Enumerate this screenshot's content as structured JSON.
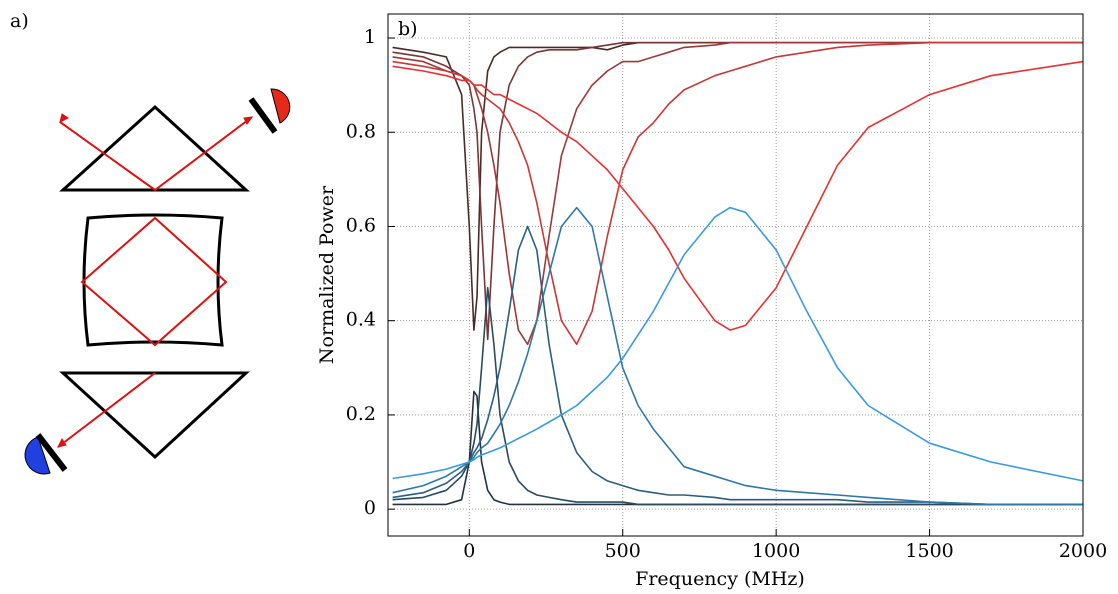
{
  "panel_label": "a)",
  "chart_data": {
    "type": "line",
    "panel_label": "b)",
    "x_label": "Frequency (MHz)",
    "y_label": "Normalized Power",
    "xlim": [
      -265,
      2000
    ],
    "ylim": [
      -0.057,
      1.051
    ],
    "xticks": [
      0,
      500,
      1000,
      1500,
      2000
    ],
    "yticks": [
      0,
      0.2,
      0.4,
      0.6,
      0.8,
      1
    ],
    "grid": true,
    "x": [
      -250,
      -150,
      -75,
      -25,
      0,
      15,
      25,
      40,
      60,
      80,
      100,
      130,
      160,
      190,
      220,
      260,
      300,
      350,
      400,
      450,
      500,
      550,
      600,
      650,
      700,
      800,
      850,
      900,
      1000,
      1100,
      1200,
      1300,
      1500,
      1700,
      2000
    ],
    "series": [
      {
        "color": "#4a2b2b",
        "values": [
          0.98,
          0.97,
          0.96,
          0.88,
          0.6,
          0.38,
          0.45,
          0.8,
          0.93,
          0.96,
          0.97,
          0.98,
          0.98,
          0.98,
          0.98,
          0.98,
          0.98,
          0.98,
          0.98,
          0.975,
          0.985,
          0.99,
          0.99,
          0.99,
          0.99,
          0.99,
          0.99,
          0.99,
          0.99,
          0.99,
          0.99,
          0.99,
          0.99,
          0.99,
          0.99
        ]
      },
      {
        "color": "#7a3535",
        "values": [
          0.97,
          0.96,
          0.94,
          0.92,
          0.9,
          0.85,
          0.8,
          0.6,
          0.36,
          0.6,
          0.8,
          0.9,
          0.94,
          0.96,
          0.97,
          0.975,
          0.975,
          0.975,
          0.98,
          0.985,
          0.99,
          0.99,
          0.99,
          0.99,
          0.99,
          0.99,
          0.99,
          0.99,
          0.99,
          0.99,
          0.99,
          0.99,
          0.99,
          0.99,
          0.99
        ]
      },
      {
        "color": "#a03838",
        "values": [
          0.96,
          0.95,
          0.93,
          0.92,
          0.91,
          0.9,
          0.88,
          0.85,
          0.8,
          0.73,
          0.65,
          0.5,
          0.38,
          0.35,
          0.4,
          0.58,
          0.75,
          0.85,
          0.9,
          0.93,
          0.95,
          0.95,
          0.96,
          0.97,
          0.98,
          0.985,
          0.99,
          0.99,
          0.99,
          0.99,
          0.99,
          0.99,
          0.99,
          0.99,
          0.99
        ]
      },
      {
        "color": "#c83838",
        "values": [
          0.95,
          0.94,
          0.93,
          0.92,
          0.91,
          0.9,
          0.89,
          0.88,
          0.87,
          0.86,
          0.85,
          0.82,
          0.78,
          0.73,
          0.65,
          0.52,
          0.4,
          0.35,
          0.42,
          0.58,
          0.72,
          0.79,
          0.82,
          0.86,
          0.89,
          0.92,
          0.93,
          0.94,
          0.96,
          0.97,
          0.98,
          0.985,
          0.99,
          0.99,
          0.99
        ]
      },
      {
        "color": "#e83030",
        "values": [
          0.94,
          0.93,
          0.92,
          0.91,
          0.91,
          0.9,
          0.9,
          0.9,
          0.89,
          0.88,
          0.88,
          0.87,
          0.86,
          0.85,
          0.84,
          0.82,
          0.8,
          0.78,
          0.75,
          0.72,
          0.68,
          0.64,
          0.6,
          0.55,
          0.49,
          0.4,
          0.38,
          0.39,
          0.47,
          0.6,
          0.73,
          0.81,
          0.88,
          0.92,
          0.95
        ]
      },
      {
        "color": "#223340",
        "values": [
          0.01,
          0.01,
          0.01,
          0.02,
          0.1,
          0.25,
          0.24,
          0.1,
          0.04,
          0.02,
          0.015,
          0.01,
          0.01,
          0.01,
          0.01,
          0.01,
          0.01,
          0.01,
          0.01,
          0.01,
          0.01,
          0.01,
          0.01,
          0.01,
          0.01,
          0.01,
          0.01,
          0.01,
          0.01,
          0.01,
          0.01,
          0.01,
          0.01,
          0.01,
          0.01
        ]
      },
      {
        "color": "#2a4a60",
        "values": [
          0.02,
          0.025,
          0.04,
          0.07,
          0.1,
          0.14,
          0.18,
          0.3,
          0.47,
          0.35,
          0.2,
          0.1,
          0.06,
          0.04,
          0.03,
          0.025,
          0.02,
          0.015,
          0.015,
          0.015,
          0.015,
          0.01,
          0.01,
          0.01,
          0.01,
          0.01,
          0.01,
          0.01,
          0.01,
          0.01,
          0.01,
          0.01,
          0.01,
          0.01,
          0.01
        ]
      },
      {
        "color": "#2a5f80",
        "values": [
          0.025,
          0.035,
          0.055,
          0.08,
          0.1,
          0.12,
          0.13,
          0.15,
          0.19,
          0.24,
          0.3,
          0.42,
          0.55,
          0.6,
          0.55,
          0.35,
          0.2,
          0.12,
          0.08,
          0.06,
          0.05,
          0.04,
          0.035,
          0.03,
          0.03,
          0.025,
          0.02,
          0.02,
          0.02,
          0.02,
          0.02,
          0.015,
          0.015,
          0.01,
          0.01
        ]
      },
      {
        "color": "#2e78a8",
        "values": [
          0.035,
          0.05,
          0.07,
          0.09,
          0.1,
          0.11,
          0.12,
          0.13,
          0.14,
          0.16,
          0.18,
          0.22,
          0.27,
          0.33,
          0.4,
          0.5,
          0.6,
          0.64,
          0.6,
          0.45,
          0.3,
          0.22,
          0.17,
          0.13,
          0.09,
          0.07,
          0.06,
          0.05,
          0.04,
          0.035,
          0.03,
          0.025,
          0.015,
          0.01,
          0.01
        ]
      },
      {
        "color": "#3a9ae0",
        "values": [
          0.065,
          0.075,
          0.085,
          0.095,
          0.1,
          0.105,
          0.11,
          0.115,
          0.12,
          0.125,
          0.13,
          0.14,
          0.15,
          0.16,
          0.17,
          0.185,
          0.2,
          0.22,
          0.25,
          0.28,
          0.32,
          0.37,
          0.42,
          0.48,
          0.54,
          0.62,
          0.64,
          0.63,
          0.55,
          0.42,
          0.3,
          0.22,
          0.14,
          0.1,
          0.06
        ]
      }
    ]
  }
}
